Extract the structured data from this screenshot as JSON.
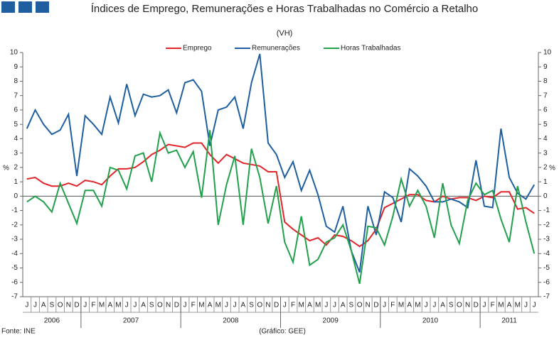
{
  "chart_data": {
    "type": "line",
    "title": "Índices de Emprego, Remunerações e Horas Trabalhadas no Comércio a Retalho",
    "subtitle": "(VH)",
    "ylabel": "%",
    "y2label": "%",
    "source": "Fonte: INE",
    "note": "(Gráfico: GEE)",
    "categories": [
      "J",
      "J",
      "A",
      "S",
      "O",
      "N",
      "D",
      "J",
      "F",
      "M",
      "A",
      "M",
      "J",
      "J",
      "A",
      "S",
      "O",
      "N",
      "D",
      "J",
      "F",
      "M",
      "A",
      "M",
      "J",
      "J",
      "A",
      "S",
      "O",
      "N",
      "D",
      "J",
      "F",
      "M",
      "A",
      "M",
      "J",
      "J",
      "A",
      "S",
      "O",
      "N",
      "D",
      "J",
      "F",
      "M",
      "A",
      "M",
      "J",
      "J",
      "A",
      "S",
      "O",
      "N",
      "D",
      "J",
      "F",
      "M",
      "A",
      "M",
      "J",
      "J"
    ],
    "year_groups": [
      {
        "label": "2006",
        "months": 7
      },
      {
        "label": "2007",
        "months": 12
      },
      {
        "label": "2008",
        "months": 12
      },
      {
        "label": "2009",
        "months": 12
      },
      {
        "label": "2010",
        "months": 12
      },
      {
        "label": "2011",
        "months": 7
      }
    ],
    "series": [
      {
        "name": "Emprego",
        "color": "#e0262b",
        "values": [
          1.2,
          1.3,
          0.9,
          0.7,
          0.7,
          0.9,
          0.7,
          1.1,
          1.0,
          0.8,
          1.4,
          1.9,
          1.9,
          2.0,
          2.4,
          2.9,
          3.2,
          3.6,
          3.5,
          3.4,
          3.7,
          3.7,
          2.9,
          2.3,
          2.9,
          2.6,
          2.3,
          2.2,
          2.1,
          1.7,
          1.7,
          -1.8,
          -2.3,
          -2.7,
          -3.1,
          -2.9,
          -3.4,
          -2.7,
          -2.8,
          -3.1,
          -3.5,
          -3.1,
          -2.3,
          -0.8,
          -0.5,
          -0.2,
          0.1,
          0.1,
          -0.3,
          -0.4,
          0.0,
          -0.2,
          -0.1,
          -0.1,
          -0.3,
          0.0,
          -0.1,
          0.3,
          0.3,
          -0.9,
          -0.8,
          -1.2
        ]
      },
      {
        "name": "Remunerações",
        "color": "#1f5fa0",
        "values": [
          4.7,
          6.0,
          5.0,
          4.3,
          4.6,
          5.7,
          1.4,
          5.6,
          5.0,
          4.3,
          6.9,
          5.1,
          7.8,
          5.6,
          7.1,
          6.9,
          7.0,
          7.4,
          5.8,
          7.9,
          8.1,
          7.3,
          3.5,
          6.0,
          6.2,
          6.9,
          4.7,
          7.9,
          9.9,
          3.7,
          2.9,
          1.3,
          2.4,
          0.4,
          1.8,
          0.1,
          -2.1,
          -2.5,
          -0.7,
          -3.8,
          -5.3,
          -0.7,
          -2.7,
          0.3,
          -0.1,
          -1.8,
          1.9,
          1.4,
          0.7,
          -0.4,
          -0.4,
          -0.2,
          -0.4,
          -0.8,
          2.5,
          -0.7,
          -0.8,
          4.7,
          1.3,
          0.2,
          -0.2,
          0.8
        ]
      },
      {
        "name": "Horas Trabalhadas",
        "color": "#22a04b",
        "values": [
          -0.4,
          0.0,
          -0.4,
          -1.1,
          0.9,
          -0.5,
          -1.9,
          0.4,
          0.4,
          -0.7,
          2.0,
          1.8,
          0.5,
          2.8,
          3.0,
          1.0,
          4.4,
          3.0,
          3.2,
          2.0,
          3.1,
          -0.1,
          4.6,
          -2.0,
          0.8,
          2.8,
          -2.0,
          3.3,
          1.3,
          -1.9,
          0.7,
          -3.2,
          -4.6,
          -1.4,
          -4.8,
          -4.4,
          -3.2,
          -2.9,
          -2.0,
          -3.8,
          -6.1,
          -2.1,
          -2.2,
          -3.4,
          -1.4,
          1.2,
          -0.7,
          0.4,
          -0.7,
          -2.9,
          0.9,
          -2.0,
          -3.3,
          -0.3,
          0.9,
          0.1,
          0.4,
          -1.6,
          -3.2,
          0.7,
          -1.8,
          -4.0
        ]
      }
    ],
    "ylim": [
      -7,
      10
    ],
    "yticks": [
      -7,
      -6,
      -5,
      -4,
      -3,
      -2,
      -1,
      0,
      1,
      2,
      3,
      4,
      5,
      6,
      7,
      8,
      9,
      10
    ],
    "y2lim": [
      -7,
      10
    ],
    "y2ticks": [
      -7,
      -6,
      -5,
      -4,
      -3,
      -2,
      -1,
      0,
      1,
      2,
      3,
      4,
      5,
      6,
      7,
      8,
      9,
      10
    ],
    "legend": "top",
    "grid": false
  }
}
